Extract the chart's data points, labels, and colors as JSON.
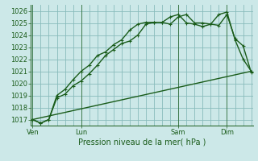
{
  "title": "Pression niveau de la mer( hPa )",
  "bg_color": "#cce8e8",
  "plot_bg_color": "#cce8e8",
  "grid_color": "#88bbbb",
  "line_color": "#1a5c1a",
  "ylim": [
    1016.5,
    1026.5
  ],
  "yticks": [
    1017,
    1018,
    1019,
    1020,
    1021,
    1022,
    1023,
    1024,
    1025,
    1026
  ],
  "day_positions": [
    0,
    3,
    9,
    12
  ],
  "day_labels": [
    "Ven",
    "Lun",
    "Sam",
    "Dim"
  ],
  "xlim": [
    -0.1,
    13.6
  ],
  "line1_x": [
    0,
    0.5,
    1.0,
    1.5,
    2.0,
    2.5,
    3.0,
    3.5,
    4.0,
    4.5,
    5.0,
    5.5,
    6.0,
    6.5,
    7.0,
    7.5,
    8.0,
    8.5,
    9.0,
    9.5,
    10.0,
    10.5,
    11.0,
    11.5,
    12.0,
    12.5,
    13.0,
    13.5
  ],
  "line1_y": [
    1017.0,
    1016.7,
    1017.0,
    1018.8,
    1019.1,
    1019.8,
    1020.2,
    1020.8,
    1021.5,
    1022.3,
    1022.8,
    1023.3,
    1023.5,
    1024.0,
    1024.9,
    1025.05,
    1025.05,
    1024.9,
    1025.5,
    1025.7,
    1025.0,
    1025.0,
    1024.9,
    1024.8,
    1025.7,
    1023.7,
    1023.1,
    1020.9
  ],
  "line2_x": [
    0,
    0.5,
    1.0,
    1.5,
    2.0,
    2.5,
    3.0,
    3.5,
    4.0,
    4.5,
    5.0,
    5.5,
    6.0,
    6.5,
    7.0,
    7.5,
    8.0,
    8.5,
    9.0,
    9.5,
    10.0,
    10.5,
    11.0,
    11.5,
    12.0,
    12.5,
    13.0,
    13.5
  ],
  "line2_y": [
    1017.0,
    1016.7,
    1017.0,
    1019.0,
    1019.5,
    1020.3,
    1021.0,
    1021.5,
    1022.3,
    1022.6,
    1023.2,
    1023.6,
    1024.4,
    1024.9,
    1025.05,
    1025.05,
    1025.05,
    1025.5,
    1025.7,
    1025.0,
    1024.9,
    1024.7,
    1024.9,
    1025.7,
    1025.9,
    1023.6,
    1022.0,
    1021.0
  ],
  "line3_x": [
    0,
    13.5
  ],
  "line3_y": [
    1017.0,
    1021.0
  ],
  "marker_size": 3.0,
  "linewidth": 1.0,
  "title_fontsize": 7.0,
  "tick_fontsize": 6.0
}
